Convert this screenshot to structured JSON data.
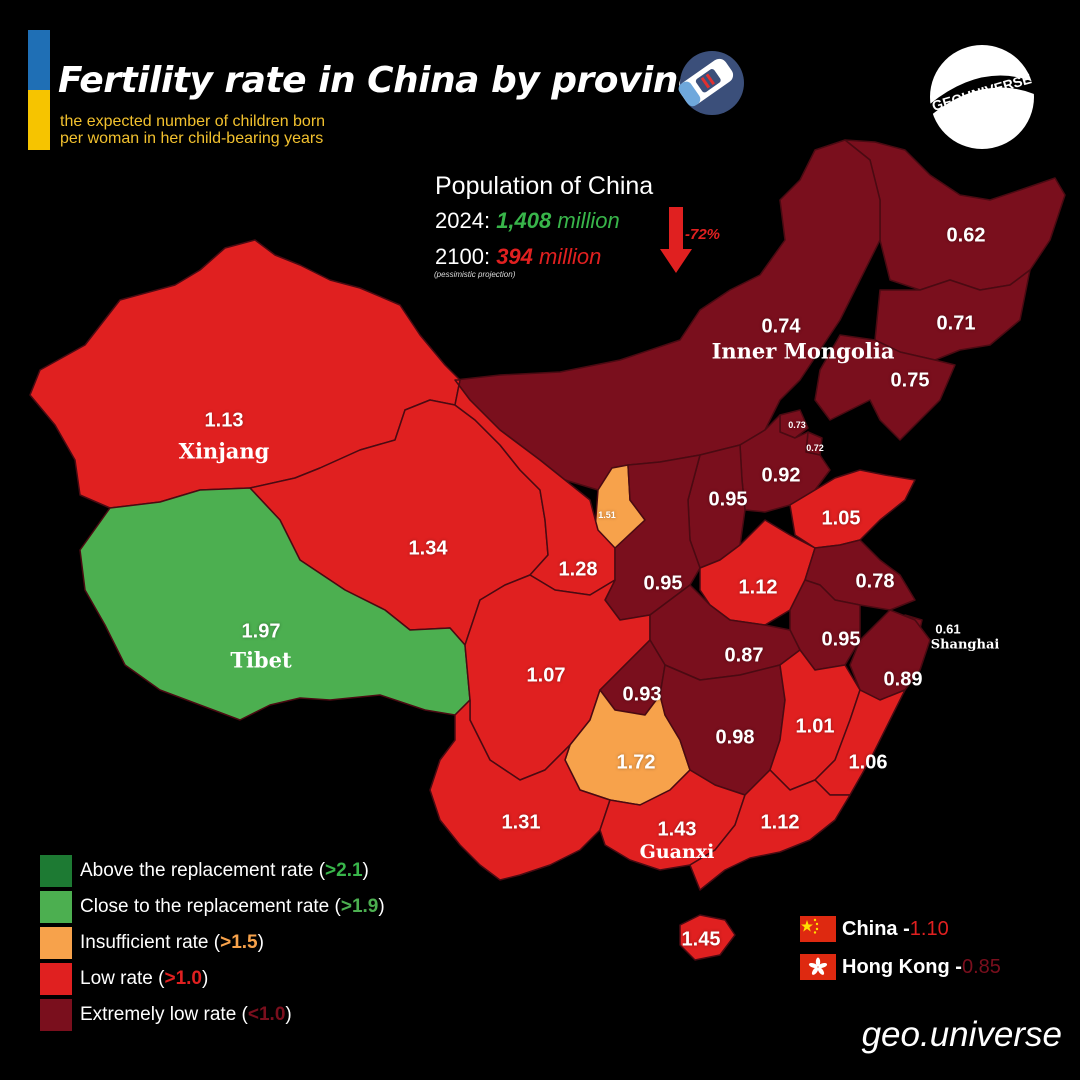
{
  "header": {
    "title": "Fertility rate in China by province",
    "subtitle_line1": "the expected number of children born",
    "subtitle_line2": "per woman in her child-bearing years"
  },
  "logo": {
    "text": "GEOUNIVERSE"
  },
  "population": {
    "heading": "Population of China",
    "y2024_label": "2024:",
    "y2024_value": "1,408",
    "y2024_unit": "million",
    "y2100_label": "2100:",
    "y2100_value": "394",
    "y2100_unit": "million",
    "note": "(pessimistic projection)",
    "change": "-72%"
  },
  "colors": {
    "above": "#1d7a33",
    "close": "#4caf50",
    "insufficient": "#f7a24b",
    "low": "#e02020",
    "extremely_low": "#7a0f1d",
    "border": "#4a0a12",
    "green_text": "#38b54a",
    "red_text": "#e02020"
  },
  "provinces": [
    {
      "id": "heilongjiang",
      "value": "0.62",
      "category": "extremely_low"
    },
    {
      "id": "inner-mongolia",
      "name": "Inner Mongolia",
      "value": "0.74",
      "category": "extremely_low"
    },
    {
      "id": "jilin",
      "value": "0.71",
      "category": "extremely_low"
    },
    {
      "id": "liaoning",
      "value": "0.75",
      "category": "extremely_low"
    },
    {
      "id": "beijing",
      "value": "0.73",
      "category": "extremely_low"
    },
    {
      "id": "tianjin",
      "value": "0.72",
      "category": "extremely_low"
    },
    {
      "id": "hebei",
      "value": "0.92",
      "category": "extremely_low"
    },
    {
      "id": "shanxi",
      "value": "0.95",
      "category": "extremely_low"
    },
    {
      "id": "shandong",
      "value": "1.05",
      "category": "low"
    },
    {
      "id": "xinjiang",
      "name": "Xinjang",
      "value": "1.13",
      "category": "low"
    },
    {
      "id": "ningxia",
      "value": "1.51",
      "category": "insufficient"
    },
    {
      "id": "qinghai",
      "value": "1.34",
      "category": "low"
    },
    {
      "id": "gansu",
      "value": "1.28",
      "category": "low"
    },
    {
      "id": "shaanxi",
      "value": "0.95",
      "category": "extremely_low"
    },
    {
      "id": "henan",
      "value": "1.12",
      "category": "low"
    },
    {
      "id": "jiangsu",
      "value": "0.78",
      "category": "extremely_low"
    },
    {
      "id": "anhui",
      "value": "0.95",
      "category": "extremely_low"
    },
    {
      "id": "shanghai",
      "name": "Shanghai",
      "value": "0.61",
      "category": "extremely_low"
    },
    {
      "id": "tibet",
      "name": "Tibet",
      "value": "1.97",
      "category": "close"
    },
    {
      "id": "sichuan",
      "value": "1.07",
      "category": "low"
    },
    {
      "id": "hubei",
      "value": "0.87",
      "category": "extremely_low"
    },
    {
      "id": "zhejiang",
      "value": "0.89",
      "category": "extremely_low"
    },
    {
      "id": "chongqing",
      "value": "0.93",
      "category": "extremely_low"
    },
    {
      "id": "guizhou",
      "value": "1.72",
      "category": "insufficient"
    },
    {
      "id": "hunan",
      "value": "0.98",
      "category": "extremely_low"
    },
    {
      "id": "jiangxi",
      "value": "1.01",
      "category": "low"
    },
    {
      "id": "fujian",
      "value": "1.06",
      "category": "low"
    },
    {
      "id": "yunnan",
      "value": "1.31",
      "category": "low"
    },
    {
      "id": "guangxi",
      "name": "Guanxi",
      "value": "1.43",
      "category": "low"
    },
    {
      "id": "guangdong",
      "value": "1.12",
      "category": "low"
    },
    {
      "id": "hainan",
      "value": "1.45",
      "category": "low"
    }
  ],
  "legend": [
    {
      "label": "Above the replacement rate (",
      "threshold": ">2.1",
      "close": ")",
      "color_key": "above",
      "thr_color": "#38b54a"
    },
    {
      "label": "Close to the replacement rate (",
      "threshold": ">1.9",
      "close": ")",
      "color_key": "close",
      "thr_color": "#4caf50"
    },
    {
      "label": "Insufficient rate (",
      "threshold": ">1.5",
      "close": ")",
      "color_key": "insufficient",
      "thr_color": "#f7a24b"
    },
    {
      "label": "Low rate (",
      "threshold": ">1.0",
      "close": ")",
      "color_key": "low",
      "thr_color": "#e02020"
    },
    {
      "label": "Extremely low rate (",
      "threshold": "<1.0",
      "close": ")",
      "color_key": "extremely_low",
      "thr_color": "#7a0f1d"
    }
  ],
  "summary": [
    {
      "name": "China - ",
      "value": "1.10",
      "value_color": "#e02020",
      "flag": "china-flag"
    },
    {
      "name": "Hong Kong - ",
      "value": "0.85",
      "value_color": "#7a0f1d",
      "flag": "hong-kong-flag"
    }
  ],
  "credit": "geo.universe"
}
